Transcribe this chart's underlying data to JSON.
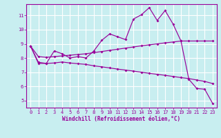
{
  "xlabel": "Windchill (Refroidissement éolien,°C)",
  "bg_color": "#c8eef0",
  "line_color": "#990099",
  "grid_color": "#ffffff",
  "xlim": [
    -0.5,
    23.5
  ],
  "ylim": [
    4.5,
    11.8
  ],
  "yticks": [
    5,
    6,
    7,
    8,
    9,
    10,
    11
  ],
  "xticks": [
    0,
    1,
    2,
    3,
    4,
    5,
    6,
    7,
    8,
    9,
    10,
    11,
    12,
    13,
    14,
    15,
    16,
    17,
    18,
    19,
    20,
    21,
    22,
    23
  ],
  "line1_x": [
    0,
    1,
    2,
    3,
    4,
    5,
    6,
    7,
    8,
    9,
    10,
    11,
    12,
    13,
    14,
    15,
    16,
    17,
    18,
    19,
    20,
    21,
    22,
    23
  ],
  "line1_y": [
    8.85,
    7.62,
    7.62,
    8.5,
    8.3,
    8.0,
    8.1,
    8.0,
    8.5,
    9.25,
    9.7,
    9.5,
    9.3,
    10.75,
    11.05,
    11.55,
    10.65,
    11.35,
    10.4,
    9.2,
    6.5,
    5.85,
    5.8,
    4.8
  ],
  "line2_x": [
    0,
    1,
    2,
    3,
    4,
    5,
    6,
    7,
    8,
    9,
    10,
    11,
    12,
    13,
    14,
    15,
    16,
    17,
    18,
    19,
    20,
    21,
    22,
    23
  ],
  "line2_y": [
    8.85,
    7.7,
    7.62,
    7.65,
    7.72,
    7.65,
    7.6,
    7.55,
    7.45,
    7.38,
    7.3,
    7.22,
    7.15,
    7.08,
    7.0,
    6.92,
    6.85,
    6.78,
    6.7,
    6.62,
    6.55,
    6.45,
    6.35,
    6.2
  ],
  "line3_x": [
    0,
    1,
    2,
    3,
    4,
    5,
    6,
    7,
    8,
    9,
    10,
    11,
    12,
    13,
    14,
    15,
    16,
    17,
    18,
    19,
    20,
    21,
    22,
    23
  ],
  "line3_y": [
    8.85,
    8.1,
    8.05,
    8.1,
    8.15,
    8.2,
    8.25,
    8.3,
    8.38,
    8.46,
    8.54,
    8.62,
    8.7,
    8.78,
    8.86,
    8.93,
    9.0,
    9.07,
    9.13,
    9.2,
    9.2,
    9.2,
    9.2,
    9.2
  ]
}
